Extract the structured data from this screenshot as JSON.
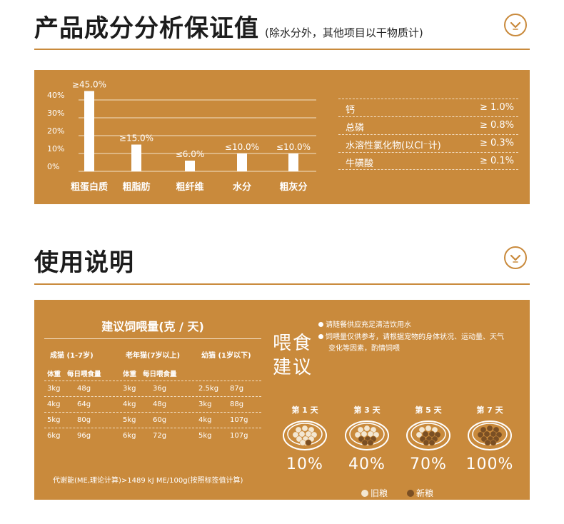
{
  "composition": {
    "title": "产品成分分析保证值",
    "subtitle": "(除水分外，其他项目以干物质计)",
    "toggle_icon": "chevron-down-icon",
    "colors": {
      "panel": "#c98a3c",
      "bars": "#ffffff",
      "rule": "#c98a3c"
    },
    "specs": [
      {
        "name": "钙",
        "value": "≥ 1.0%"
      },
      {
        "name": "总磷",
        "value": "≥ 0.8%"
      },
      {
        "name": "水溶性氯化物(以Cl⁻计)",
        "value": "≥ 0.3%"
      },
      {
        "name": "牛磺酸",
        "value": "≥ 0.1%"
      }
    ]
  },
  "chart_data": {
    "type": "bar",
    "categories": [
      "粗蛋白质",
      "粗脂肪",
      "粗纤维",
      "水分",
      "粗灰分"
    ],
    "values": [
      45.0,
      15.0,
      6.0,
      10.0,
      10.0
    ],
    "data_labels": [
      "≥45.0%",
      "≥15.0%",
      "≤6.0%",
      "≤10.0%",
      "≤10.0%"
    ],
    "y_ticks": [
      "0%",
      "10%",
      "20%",
      "30%",
      "40%"
    ],
    "ylim": [
      0,
      45
    ],
    "grid": true,
    "title": "",
    "xlabel": "",
    "ylabel": ""
  },
  "usage": {
    "title": "使用说明",
    "toggle_icon": "chevron-down-icon",
    "feeding": {
      "title": "建议饲喂量(克 / 天)",
      "groups": [
        {
          "title": "成猫 (1-7岁)",
          "h1": "体重",
          "h2": "每日喂食量",
          "rows": [
            [
              "3kg",
              "48g"
            ],
            [
              "4kg",
              "64g"
            ],
            [
              "5kg",
              "80g"
            ],
            [
              "6kg",
              "96g"
            ]
          ]
        },
        {
          "title": "老年猫(7岁以上)",
          "h1": "体重",
          "h2": "每日喂食量",
          "rows": [
            [
              "3kg",
              "36g"
            ],
            [
              "4kg",
              "48g"
            ],
            [
              "5kg",
              "60g"
            ],
            [
              "6kg",
              "72g"
            ]
          ]
        },
        {
          "title": "幼猫 (1岁以下)",
          "h1": "体重",
          "h2": "每日喂食量",
          "rows": [
            [
              "2.5kg",
              "87g"
            ],
            [
              "3kg",
              "88g"
            ],
            [
              "4kg",
              "107g"
            ],
            [
              "5kg",
              "107g"
            ]
          ]
        }
      ],
      "footnote": "代谢能(ME,理论计算)>1489 kJ ME/100g(按照标签值计算)"
    },
    "advice": {
      "title_line1": "喂食",
      "title_line2": "建议",
      "note1": "请随餐供应充足清洁饮用水",
      "note2_line1": "饲喂量仅供参考，请根据宠物的身体状况、运动量、天气",
      "note2_line2": "变化等因素，酌情饲喂"
    },
    "transition": [
      {
        "day": "第 1 天",
        "pct": "10%",
        "new_ratio": 0.1
      },
      {
        "day": "第 3 天",
        "pct": "40%",
        "new_ratio": 0.4
      },
      {
        "day": "第 5 天",
        "pct": "70%",
        "new_ratio": 0.7
      },
      {
        "day": "第 7 天",
        "pct": "100%",
        "new_ratio": 1.0
      }
    ],
    "legend": {
      "old": "旧粮",
      "new": "新粮",
      "old_color": "#f3e7d2",
      "new_color": "#7a4f24"
    }
  }
}
